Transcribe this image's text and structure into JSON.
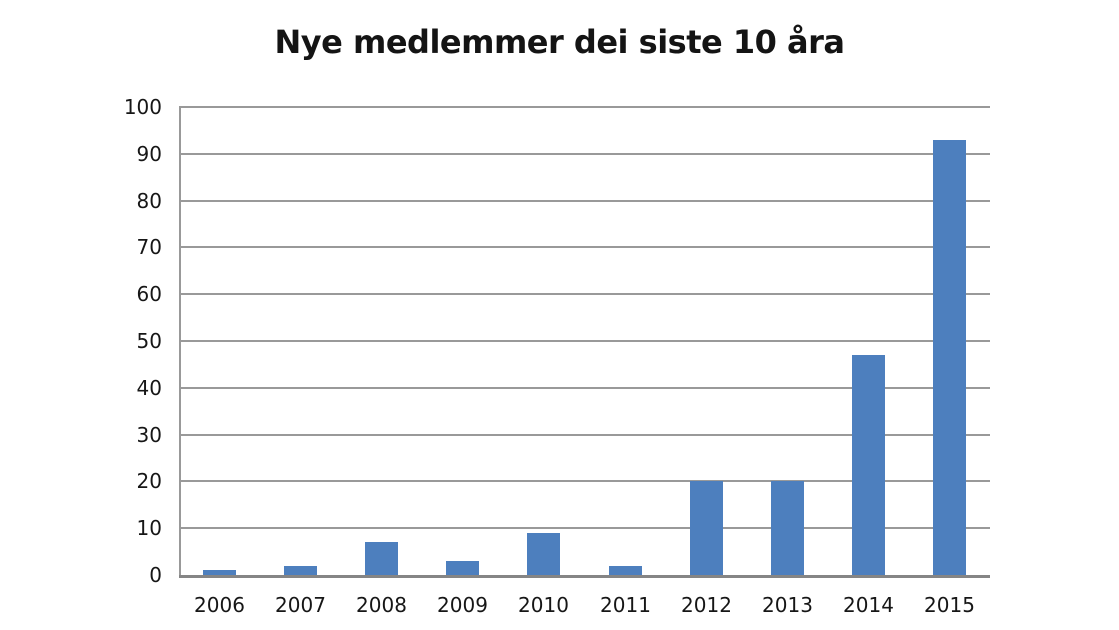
{
  "chart_data": {
    "type": "bar",
    "title": "Nye medlemmer dei siste 10 åra",
    "categories": [
      "2006",
      "2007",
      "2008",
      "2009",
      "2010",
      "2011",
      "2012",
      "2013",
      "2014",
      "2015"
    ],
    "values": [
      1,
      2,
      7,
      3,
      9,
      2,
      20,
      20,
      47,
      93
    ],
    "xlabel": "",
    "ylabel": "",
    "ylim": [
      0,
      100
    ],
    "y_ticks": [
      0,
      10,
      20,
      30,
      40,
      50,
      60,
      70,
      80,
      90,
      100
    ],
    "grid": true,
    "legend": "none",
    "colors": {
      "bar": "#4d7fbe",
      "gridline": "#999999",
      "axis": "#858585",
      "text": "#161616",
      "background": "#ffffff"
    }
  }
}
